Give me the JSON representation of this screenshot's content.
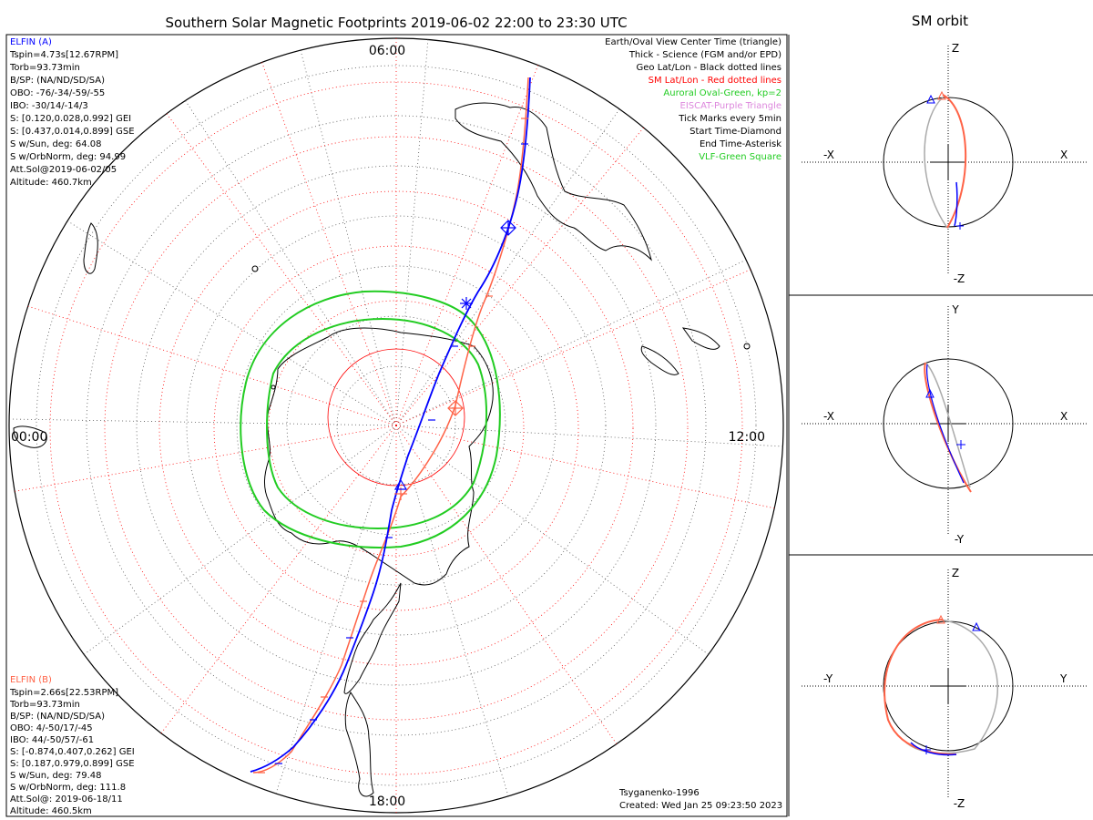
{
  "title": "Southern Solar Magnetic Footprints 2019-06-02 22:00 to 23:30 UTC",
  "orbit_title": "SM orbit",
  "colors": {
    "elfin_a": "#0000ff",
    "elfin_b": "#ff6347",
    "oval": "#00cc00",
    "sm_grid": "#ff0000",
    "eiscat": "#dd88dd",
    "gray_track": "#aaaaaa"
  },
  "elfin_a": {
    "name": "ELFIN (A)",
    "lines": [
      "Tspin=4.73s[12.67RPM]",
      "Torb=93.73min",
      "B/SP: (NA/ND/SD/SA)",
      "OBO: -76/-34/-59/-55",
      "IBO: -30/14/-14/3",
      "S: [0.120,0.028,0.992] GEI",
      "S: [0.437,0.014,0.899] GSE",
      "S w/Sun, deg: 64.08",
      "S w/OrbNorm, deg: 94.99",
      "Att.Sol@2019-06-02/05",
      "Altitude: 460.7km"
    ]
  },
  "elfin_b": {
    "name": "ELFIN (B)",
    "lines": [
      "Tspin=2.66s[22.53RPM]",
      "Torb=93.73min",
      "B/SP: (NA/ND/SD/SA)",
      "OBO: 4/-50/17/-45",
      "IBO: 44/-50/57/-61",
      "S: [-0.874,0.407,0.262] GEI",
      "S: [0.187,0.979,0.899] GSE",
      "S w/Sun, deg: 79.48",
      "S w/OrbNorm, deg: 111.8",
      "Att.Sol@: 2019-06-18/11",
      "Altitude: 460.5km"
    ]
  },
  "legend": [
    {
      "text": "Earth/Oval View Center Time (triangle)",
      "color": "#000000"
    },
    {
      "text": "Thick - Science (FGM and/or EPD)",
      "color": "#000000"
    },
    {
      "text": "Geo Lat/Lon - Black dotted lines",
      "color": "#000000"
    },
    {
      "text": "SM Lat/Lon - Red dotted lines",
      "color": "#ff0000"
    },
    {
      "text": "Auroral Oval-Green, kp=2",
      "color": "#00cc00"
    },
    {
      "text": "EISCAT-Purple Triangle",
      "color": "#dd88dd"
    },
    {
      "text": "Tick Marks every 5min",
      "color": "#000000"
    },
    {
      "text": "Start Time-Diamond",
      "color": "#000000"
    },
    {
      "text": "End Time-Asterisk",
      "color": "#000000"
    },
    {
      "text": "VLF-Green Square",
      "color": "#00cc00"
    }
  ],
  "time_labels": {
    "top": "06:00",
    "left": "00:00",
    "right": "12:00",
    "bottom": "18:00"
  },
  "footer": {
    "model": "Tsyganenko-1996",
    "created": "Created: Wed Jan 25 09:23:50 2023"
  },
  "panels": [
    {
      "top": "Z",
      "bottom": "-Z",
      "left": "-X",
      "right": "X"
    },
    {
      "top": "Y",
      "bottom": "-Y",
      "left": "-X",
      "right": "X"
    },
    {
      "top": "Z",
      "bottom": "-Z",
      "left": "-Y",
      "right": "Y"
    }
  ]
}
